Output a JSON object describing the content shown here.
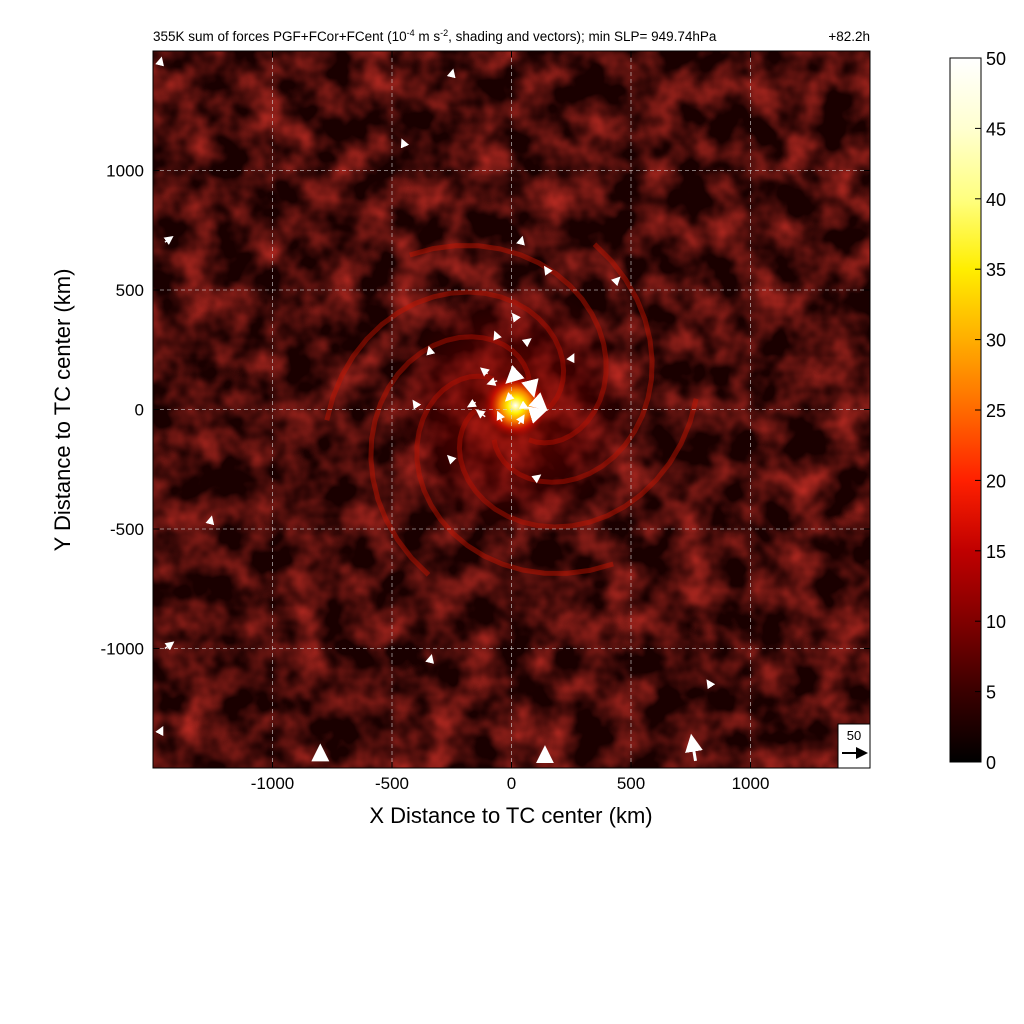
{
  "chart_data": {
    "type": "heatmap",
    "title": "355K sum of forces PGF+FCor+FCent (10",
    "title_exponent": "-4",
    "title_unit_mid": " m s",
    "title_unit_exponent": "-2",
    "title_rest": ", shading and vectors); min SLP= 949.74hPa",
    "forecast_hour": "+82.2h",
    "xlabel": "X Distance to TC center (km)",
    "ylabel": "Y Distance to TC center (km)",
    "xlim": [
      -1500,
      1500
    ],
    "ylim": [
      -1500,
      1500
    ],
    "x_ticks": [
      -1000,
      -500,
      0,
      500,
      1000
    ],
    "y_ticks": [
      1000,
      500,
      0,
      -500,
      -1000
    ],
    "x_tick_labels": [
      "-1000",
      "-500",
      "0",
      "500",
      "1000"
    ],
    "y_tick_labels": [
      "1000",
      "500",
      "0",
      "-500",
      "-1000"
    ],
    "grid": true,
    "grid_style": "dashed",
    "colorbar": {
      "min": 0,
      "max": 50,
      "ticks": [
        0,
        5,
        10,
        15,
        20,
        25,
        30,
        35,
        40,
        45,
        50
      ],
      "tick_labels": [
        "0",
        "5",
        "10",
        "15",
        "20",
        "25",
        "30",
        "35",
        "40",
        "45",
        "50"
      ],
      "colors": [
        "#000000",
        "#3a0000",
        "#800000",
        "#c00000",
        "#ff2000",
        "#ff6a00",
        "#ffae00",
        "#ffee00",
        "#ffff80",
        "#ffffd0",
        "#ffffff"
      ]
    },
    "reference_vector": {
      "label": "50",
      "magnitude": 50
    },
    "vectors": [
      {
        "x": -100,
        "y": 150,
        "u": -12,
        "v": 10
      },
      {
        "x": -60,
        "y": 120,
        "u": -18,
        "v": -6
      },
      {
        "x": 20,
        "y": 150,
        "u": -15,
        "v": -14
      },
      {
        "x": 80,
        "y": 110,
        "u": 5,
        "v": -20
      },
      {
        "x": 100,
        "y": 40,
        "u": 18,
        "v": -16
      },
      {
        "x": 90,
        "y": -20,
        "u": 20,
        "v": 6
      },
      {
        "x": 30,
        "y": -60,
        "u": 10,
        "v": 16
      },
      {
        "x": -40,
        "y": -50,
        "u": -8,
        "v": 18
      },
      {
        "x": -110,
        "y": -30,
        "u": -16,
        "v": 12
      },
      {
        "x": -150,
        "y": 30,
        "u": -14,
        "v": -8
      },
      {
        "x": 0,
        "y": 60,
        "u": -10,
        "v": -10
      },
      {
        "x": 40,
        "y": 20,
        "u": 12,
        "v": -6
      },
      {
        "x": -60,
        "y": 300,
        "u": -4,
        "v": 10
      },
      {
        "x": 20,
        "y": 380,
        "u": -6,
        "v": 8
      },
      {
        "x": 60,
        "y": 280,
        "u": 8,
        "v": 6
      },
      {
        "x": 250,
        "y": 210,
        "u": 4,
        "v": 8
      },
      {
        "x": -340,
        "y": 240,
        "u": -2,
        "v": 8
      },
      {
        "x": -400,
        "y": 20,
        "u": -4,
        "v": 6
      },
      {
        "x": 100,
        "y": -290,
        "u": 8,
        "v": 6
      },
      {
        "x": -250,
        "y": -210,
        "u": -6,
        "v": 6
      },
      {
        "x": 40,
        "y": 700,
        "u": 2,
        "v": 8
      },
      {
        "x": 150,
        "y": 580,
        "u": -4,
        "v": 6
      },
      {
        "x": 440,
        "y": 540,
        "u": 4,
        "v": 4
      },
      {
        "x": -250,
        "y": 1400,
        "u": 2,
        "v": 8
      },
      {
        "x": -450,
        "y": 1110,
        "u": -3,
        "v": 7
      },
      {
        "x": -1450,
        "y": 700,
        "u": 14,
        "v": 10
      },
      {
        "x": -1450,
        "y": -1000,
        "u": 16,
        "v": 12
      },
      {
        "x": -1260,
        "y": -470,
        "u": 2,
        "v": 8
      },
      {
        "x": -340,
        "y": -1050,
        "u": 2,
        "v": 8
      },
      {
        "x": 830,
        "y": -1150,
        "u": -4,
        "v": 6
      },
      {
        "x": -800,
        "y": -1470,
        "u": 0,
        "v": 26
      },
      {
        "x": 140,
        "y": -1470,
        "u": 0,
        "v": 22
      },
      {
        "x": 770,
        "y": -1470,
        "u": -8,
        "v": 48
      },
      {
        "x": -1470,
        "y": 1450,
        "u": 2,
        "v": 8
      },
      {
        "x": -1470,
        "y": -1350,
        "u": 4,
        "v": 8
      }
    ]
  }
}
